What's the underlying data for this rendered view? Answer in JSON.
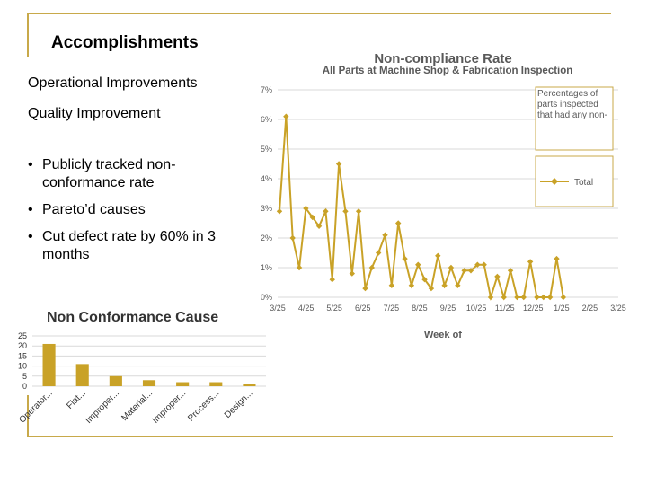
{
  "slide": {
    "title": "Accomplishments",
    "operational": "Operational Improvements",
    "quality": "Quality Improvement",
    "bullets": [
      "Publicly tracked non-conformance rate",
      "Pareto’d causes",
      "Cut defect rate by 60% in 3 months"
    ]
  },
  "colors": {
    "accent": "#c8a94a",
    "series": "#c9a227",
    "grid": "#d9d9d9"
  },
  "chart_data": [
    {
      "type": "line",
      "title": "Non-compliance Rate",
      "subtitle": "All Parts at Machine Shop & Fabrication Inspection",
      "xlabel": "Week of",
      "ylabel": "",
      "ytick_labels": [
        "0%",
        "1%",
        "2%",
        "3%",
        "4%",
        "5%",
        "6%",
        "7%"
      ],
      "ylim": [
        0,
        7
      ],
      "xtick_labels": [
        "3/25",
        "4/25",
        "5/25",
        "6/25",
        "7/25",
        "8/25",
        "9/25",
        "10/25",
        "11/25",
        "12/25",
        "1/25",
        "2/25",
        "3/25"
      ],
      "annotation": "Percentages of parts inspected that had any non-",
      "legend": {
        "position": "right",
        "entries": [
          "Total"
        ]
      },
      "grid": true,
      "series": [
        {
          "name": "Total",
          "values": [
            2.9,
            6.1,
            2.0,
            1.0,
            3.0,
            2.7,
            2.4,
            2.9,
            0.6,
            4.5,
            2.9,
            0.8,
            2.9,
            0.3,
            1.0,
            1.5,
            2.1,
            0.4,
            2.5,
            1.3,
            0.4,
            1.1,
            0.6,
            0.3,
            1.4,
            0.4,
            1.0,
            0.4,
            0.9,
            0.9,
            1.1,
            1.1,
            0.0,
            0.7,
            0.0,
            0.9,
            0.0,
            0.0,
            1.2,
            0.0,
            0.0,
            0.0,
            1.3,
            0.0
          ]
        }
      ]
    },
    {
      "type": "bar",
      "title": "Non Conformance Cause",
      "categories": [
        "Operator...",
        "Flat...",
        "Improper...",
        "Material...",
        "Improper...",
        "Process...",
        "Design..."
      ],
      "values": [
        21,
        11,
        5,
        3,
        2,
        2,
        1
      ],
      "ytick_labels": [
        "0",
        "5",
        "10",
        "15",
        "20",
        "25"
      ],
      "ylim": [
        0,
        25
      ],
      "grid": true
    }
  ]
}
